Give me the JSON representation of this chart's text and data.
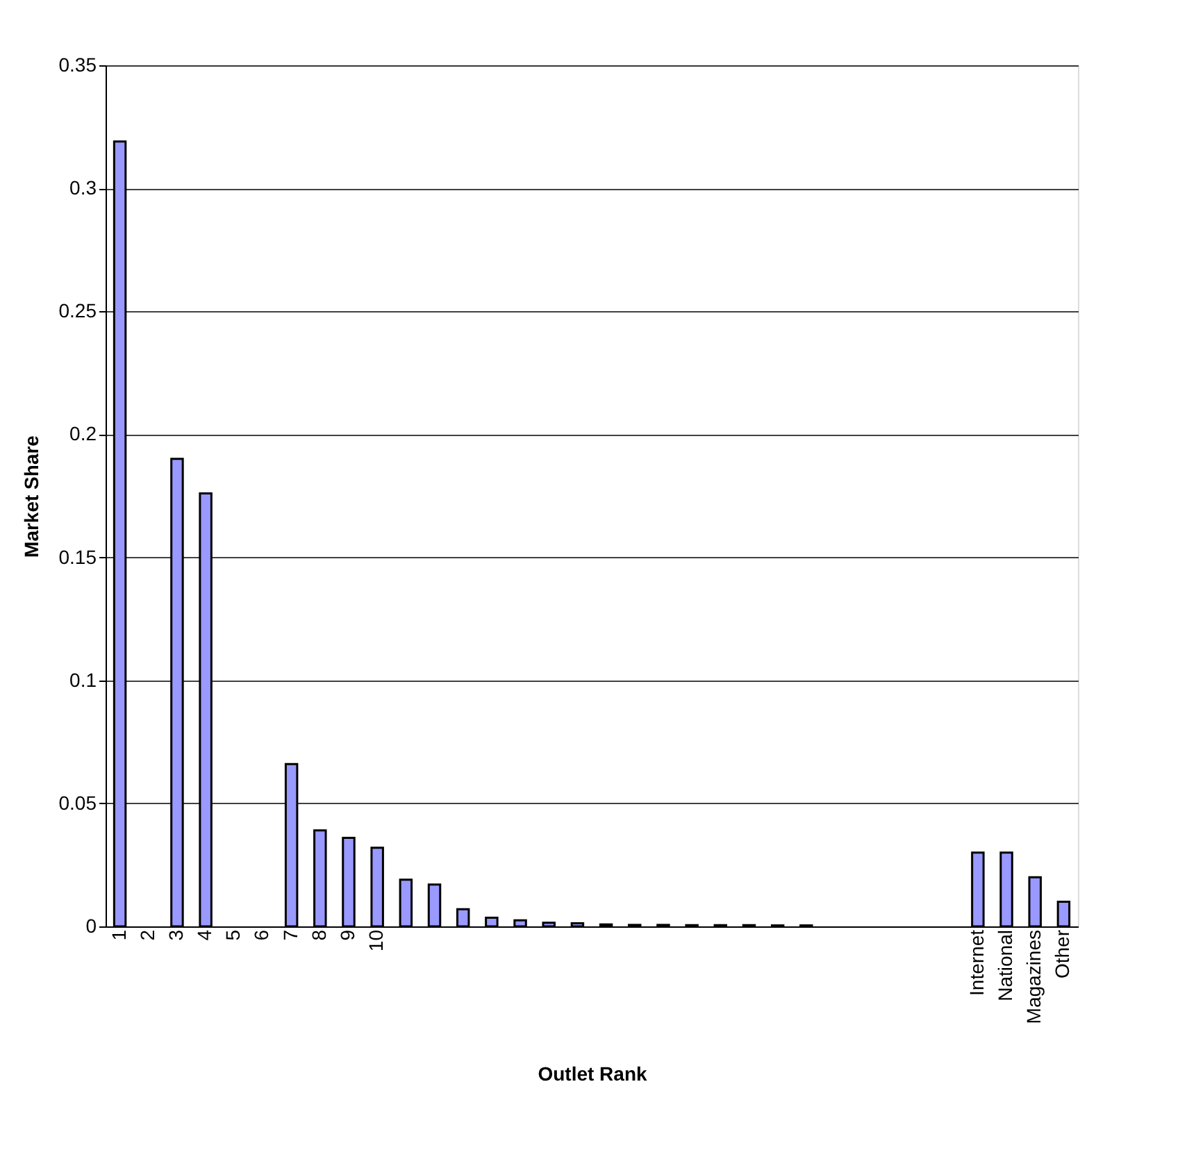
{
  "chart_data": {
    "type": "bar",
    "xlabel": "Outlet Rank",
    "ylabel": "Market Share",
    "categories": [
      "1",
      "2",
      "3",
      "4",
      "5",
      "6",
      "7",
      "8",
      "9",
      "10",
      null,
      null,
      null,
      null,
      null,
      null,
      null,
      null,
      null,
      null,
      null,
      null,
      null,
      null,
      null,
      null,
      null,
      null,
      null,
      null,
      "Internet",
      "National",
      "Magazines",
      "Other"
    ],
    "values": [
      0.319,
      null,
      0.19,
      0.176,
      null,
      null,
      0.066,
      0.039,
      0.036,
      0.032,
      0.019,
      0.017,
      0.007,
      0.0035,
      0.0025,
      0.0015,
      0.0013,
      0.0008,
      0.0006,
      0.0006,
      0.0005,
      0.0005,
      0.0005,
      0.0004,
      0.0004,
      null,
      null,
      null,
      null,
      null,
      0.03,
      0.03,
      0.02,
      0.01
    ],
    "color": "#9999ff",
    "ylim": [
      0,
      0.35
    ],
    "yticks": [
      0,
      0.05,
      0.1,
      0.15,
      0.2,
      0.25,
      0.3,
      0.35
    ],
    "grid": "y"
  }
}
